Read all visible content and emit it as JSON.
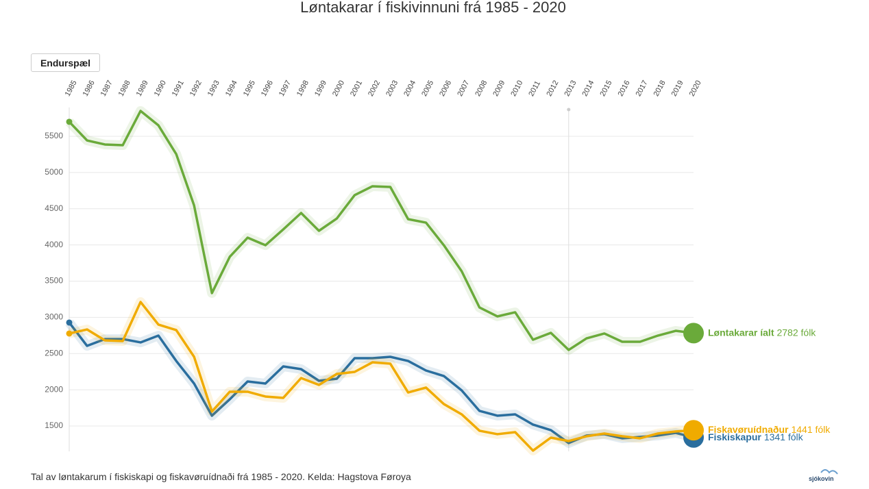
{
  "chart_data": {
    "type": "line",
    "title": "Løntakarar í fiskivinnuni frá 1985 - 2020",
    "x": [
      1985,
      1986,
      1987,
      1988,
      1989,
      1990,
      1991,
      1992,
      1993,
      1994,
      1995,
      1996,
      1997,
      1998,
      1999,
      2000,
      2001,
      2002,
      2003,
      2004,
      2005,
      2006,
      2007,
      2008,
      2009,
      2010,
      2011,
      2012,
      2013,
      2014,
      2015,
      2016,
      2017,
      2018,
      2019,
      2020
    ],
    "xlim": [
      1985,
      2020
    ],
    "xticks": [
      1985,
      1986,
      1987,
      1988,
      1989,
      1990,
      1991,
      1992,
      1993,
      1994,
      1995,
      1996,
      1997,
      1998,
      1999,
      2000,
      2001,
      2002,
      2003,
      2004,
      2005,
      2006,
      2007,
      2008,
      2009,
      2010,
      2011,
      2012,
      2013,
      2014,
      2015,
      2016,
      2017,
      2018,
      2019,
      2020
    ],
    "ylim": [
      1150,
      5900
    ],
    "yticks": [
      1500,
      2000,
      2500,
      3000,
      3500,
      4000,
      4500,
      5000,
      5500
    ],
    "grid": true,
    "reference_line_x": 2013,
    "series": [
      {
        "name": "Løntakarar íalt",
        "color": "#6aaa3a",
        "values": [
          5700,
          5443,
          5387,
          5377,
          5850,
          5651,
          5254,
          4545,
          3335,
          3836,
          4100,
          3996,
          4214,
          4441,
          4195,
          4365,
          4687,
          4810,
          4800,
          4356,
          4308,
          3996,
          3637,
          3136,
          3013,
          3070,
          2691,
          2786,
          2550,
          2710,
          2777,
          2663,
          2663,
          2748,
          2814,
          2782
        ],
        "value_labels": [
          null,
          null,
          null,
          null,
          null,
          null,
          null,
          null,
          null,
          null,
          null,
          null,
          null,
          null,
          null,
          null,
          null,
          null,
          null,
          null,
          null,
          null,
          null,
          null,
          null,
          null,
          null,
          null,
          null,
          null,
          null,
          null,
          null,
          null,
          null,
          "2782 fólk"
        ]
      },
      {
        "name": "Fiskiskapur",
        "color": "#2a6e9e",
        "values": [
          2928,
          2606,
          2700,
          2700,
          2654,
          2748,
          2398,
          2086,
          1642,
          1869,
          2115,
          2086,
          2323,
          2285,
          2124,
          2152,
          2436,
          2436,
          2455,
          2398,
          2266,
          2190,
          1992,
          1708,
          1642,
          1661,
          1519,
          1443,
          1264,
          1368,
          1387,
          1330,
          1349,
          1368,
          1405,
          1341
        ],
        "value_labels": [
          null,
          null,
          null,
          null,
          null,
          null,
          null,
          null,
          null,
          null,
          null,
          null,
          null,
          null,
          null,
          null,
          null,
          null,
          null,
          null,
          null,
          null,
          null,
          null,
          null,
          null,
          null,
          null,
          null,
          null,
          null,
          null,
          null,
          null,
          null,
          "1341 fólk"
        ]
      },
      {
        "name": "Fiskavøruídnaður",
        "color": "#f0ab00",
        "values": [
          2777,
          2833,
          2682,
          2673,
          3212,
          2900,
          2824,
          2455,
          1699,
          1973,
          1973,
          1907,
          1888,
          2162,
          2067,
          2219,
          2247,
          2379,
          2360,
          1963,
          2030,
          1803,
          1661,
          1434,
          1387,
          1415,
          1160,
          1339,
          1292,
          1358,
          1396,
          1358,
          1330,
          1396,
          1424,
          1441
        ],
        "value_labels": [
          null,
          null,
          null,
          null,
          null,
          null,
          null,
          null,
          null,
          null,
          null,
          null,
          null,
          null,
          null,
          null,
          null,
          null,
          null,
          null,
          null,
          null,
          null,
          null,
          null,
          null,
          null,
          null,
          null,
          null,
          null,
          null,
          null,
          null,
          null,
          "1441 fólk"
        ]
      }
    ]
  },
  "controls": {
    "replay": "Endurspæl"
  },
  "footer": {
    "caption": "Tal av løntakarum í fiskiskapi og fiskavøruídnaði frá 1985 - 2020. Kelda: Hagstova Føroya",
    "logo": "sjókovin"
  }
}
